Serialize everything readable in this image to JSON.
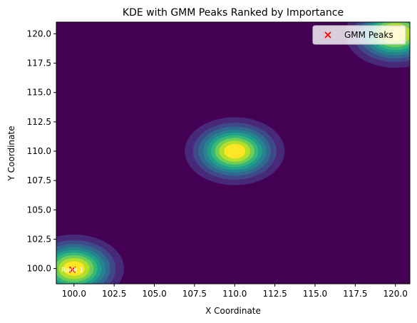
{
  "chart_data": {
    "type": "heatmap",
    "subtype": "kde-contourf-with-gmm-peaks",
    "title": "KDE with GMM Peaks Ranked by Importance",
    "xlabel": "X Coordinate",
    "ylabel": "Y Coordinate",
    "xlim": [
      98.9,
      120.9
    ],
    "ylim": [
      98.7,
      121.0
    ],
    "xticks": [
      "100.0",
      "102.5",
      "105.0",
      "107.5",
      "110.0",
      "112.5",
      "115.0",
      "117.5",
      "120.0"
    ],
    "yticks": [
      "100.0",
      "102.5",
      "105.0",
      "107.5",
      "110.0",
      "112.5",
      "115.0",
      "117.5",
      "120.0"
    ],
    "colormap": [
      "#440154",
      "#482878",
      "#3e4989",
      "#31688e",
      "#26828e",
      "#1f9e89",
      "#35b779",
      "#6ece58",
      "#b5de2b",
      "#fde725"
    ],
    "background_color": "#440154",
    "density_blobs": [
      {
        "x": 100.0,
        "y": 100.0,
        "sigma_x": 1.45,
        "sigma_y": 1.35,
        "peak": 1.0
      },
      {
        "x": 110.0,
        "y": 110.0,
        "sigma_x": 1.45,
        "sigma_y": 1.35,
        "peak": 1.0
      },
      {
        "x": 120.0,
        "y": 120.0,
        "sigma_x": 1.45,
        "sigma_y": 1.35,
        "peak": 1.0
      }
    ],
    "series": [
      {
        "name": "GMM Peaks",
        "marker": "x",
        "color": "#ff0000",
        "points": [
          {
            "x": 99.9,
            "y": 99.9,
            "label": "Rank 1"
          }
        ]
      }
    ],
    "legend": {
      "position": "top-right",
      "entries": [
        "GMM Peaks"
      ]
    },
    "grid": false
  }
}
